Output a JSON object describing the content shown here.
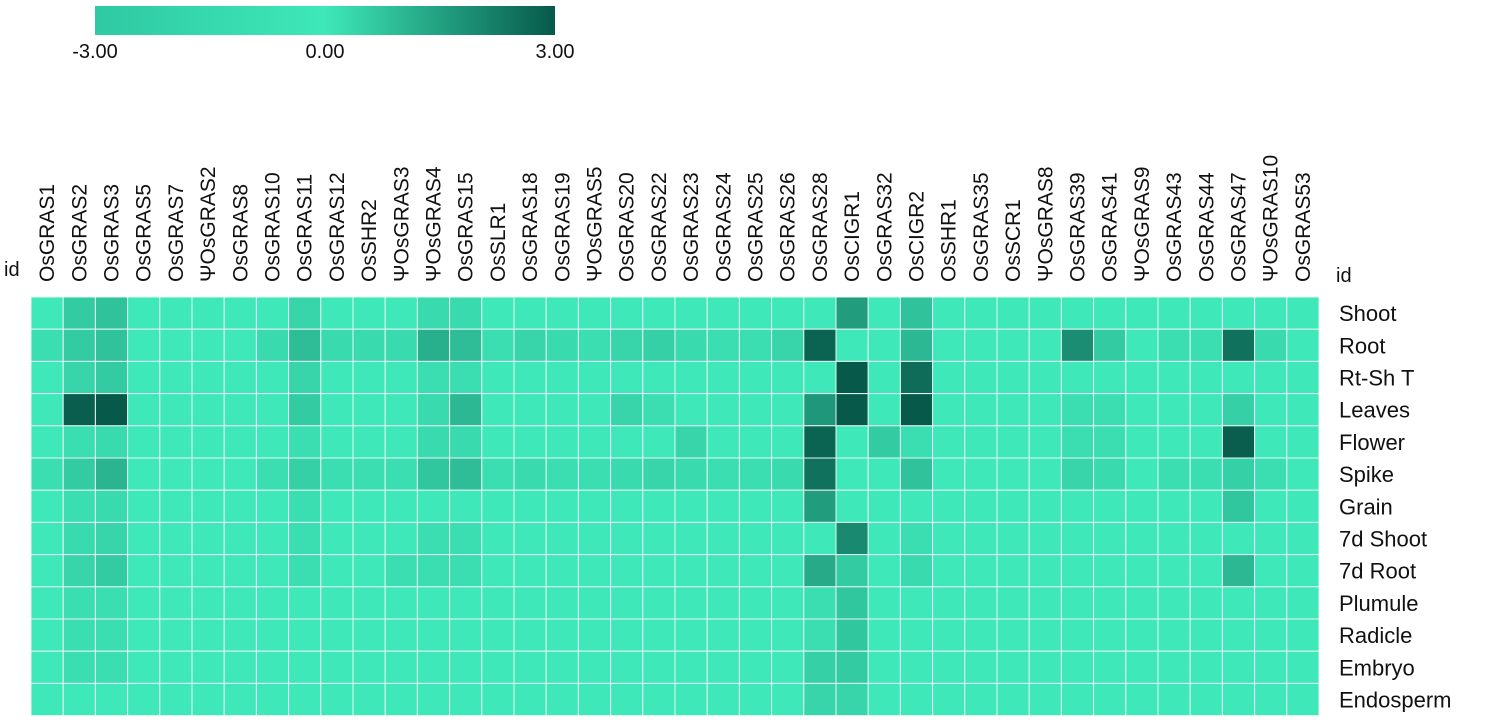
{
  "chart_data": {
    "type": "heatmap",
    "corner_label_left": "id",
    "corner_label_right": "id",
    "color_scale": {
      "min": -3.0,
      "mid": 0.0,
      "max": 3.0,
      "labels": [
        "-3.00",
        "0.00",
        "3.00"
      ],
      "colors": {
        "min": "#2fc9a3",
        "mid": "#3ee8b8",
        "max": "#07594a"
      }
    },
    "columns": [
      "OsGRAS1",
      "OsGRAS2",
      "OsGRAS3",
      "OsGRAS5",
      "OsGRAS7",
      "ΨOsGRAS2",
      "OsGRAS8",
      "OsGRAS10",
      "OsGRAS11",
      "OsGRAS12",
      "OsSHR2",
      "ΨOsGRAS3",
      "ΨOsGRAS4",
      "OsGRAS15",
      "OsSLR1",
      "OsGRAS18",
      "OsGRAS19",
      "ΨOsGRAS5",
      "OsGRAS20",
      "OsGRAS22",
      "OsGRAS23",
      "OsGRAS24",
      "OsGRAS25",
      "OsGRAS26",
      "OsGRAS28",
      "OsCIGR1",
      "OsGRAS32",
      "OsCIGR2",
      "OsSHR1",
      "OsGRAS35",
      "OsSCR1",
      "ΨOsGRAS8",
      "OsGRAS39",
      "OsGRAS41",
      "ΨOsGRAS9",
      "OsGRAS43",
      "OsGRAS44",
      "OsGRAS47",
      "ΨOsGRAS10",
      "OsGRAS53"
    ],
    "rows": [
      "Shoot",
      "Root",
      "Rt-Sh T",
      "Leaves",
      "Flower",
      "Spike",
      "Grain",
      "7d Shoot",
      "7d Root",
      "Plumule",
      "Radicle",
      "Embryo",
      "Endosperm"
    ],
    "values": [
      [
        0,
        0.6,
        0.8,
        0,
        0,
        0,
        0,
        0,
        0.4,
        0,
        0,
        0,
        0.3,
        0.3,
        0,
        0,
        0,
        0,
        0,
        0,
        0,
        0,
        0,
        0,
        0,
        1.6,
        0,
        0.8,
        0,
        0,
        0,
        0,
        0,
        0,
        0,
        0,
        0,
        0,
        0,
        0
      ],
      [
        0.2,
        0.6,
        0.8,
        0,
        0,
        0,
        0,
        0.3,
        0.9,
        0.3,
        0.3,
        0.3,
        1.2,
        0.9,
        0.2,
        0.4,
        0.3,
        0.2,
        0.4,
        0.5,
        0.3,
        0.2,
        0.2,
        0.4,
        2.8,
        0,
        0,
        1.0,
        0,
        0,
        0,
        0,
        1.9,
        0.6,
        0,
        0.2,
        0.2,
        2.5,
        0.3,
        0
      ],
      [
        0,
        0.4,
        0.6,
        0,
        0,
        0,
        0,
        0,
        0.4,
        0,
        0,
        0,
        0.2,
        0.2,
        0,
        0,
        0,
        0,
        0,
        0,
        0,
        0,
        0,
        0,
        0,
        3.0,
        0,
        2.6,
        0,
        0,
        0,
        0,
        0,
        0,
        0,
        0,
        0,
        0,
        0,
        0
      ],
      [
        0,
        2.9,
        3.0,
        0,
        0,
        0,
        0,
        0,
        0.6,
        0,
        0,
        0,
        0.3,
        1.0,
        0,
        0,
        0,
        0,
        0.4,
        0.2,
        0,
        0,
        0,
        0,
        1.7,
        3.0,
        0,
        3.0,
        0,
        0,
        0,
        0,
        0.2,
        0.2,
        0,
        0,
        0,
        0.5,
        0,
        0
      ],
      [
        0,
        0.2,
        0.3,
        0,
        0,
        0,
        0,
        0,
        0.2,
        0,
        0,
        0,
        0.3,
        0.3,
        0,
        0,
        0,
        0,
        0,
        0,
        0.4,
        0,
        0,
        0,
        2.8,
        0,
        0.6,
        0.2,
        0,
        0,
        0,
        0,
        0.2,
        0.2,
        0,
        0,
        0,
        2.9,
        0,
        0
      ],
      [
        0.2,
        0.6,
        1.1,
        0,
        0,
        0,
        0,
        0.2,
        0.5,
        0.2,
        0.2,
        0.2,
        0.7,
        0.9,
        0.2,
        0.3,
        0.2,
        0.2,
        0.3,
        0.4,
        0.3,
        0.2,
        0.2,
        0.3,
        2.5,
        0,
        0,
        0.8,
        0,
        0,
        0,
        0,
        0.4,
        0.3,
        0,
        0.2,
        0.2,
        0.5,
        0.2,
        0
      ],
      [
        0,
        0.2,
        0.3,
        0,
        0,
        0,
        0,
        0,
        0.2,
        0,
        0,
        0,
        0,
        0,
        0,
        0,
        0,
        0,
        0,
        0,
        0,
        0,
        0,
        0,
        1.6,
        0,
        0,
        0,
        0,
        0,
        0,
        0,
        0,
        0,
        0,
        0,
        0,
        0.7,
        0,
        0
      ],
      [
        0,
        0.3,
        0.4,
        0,
        0,
        0,
        0,
        0,
        0.2,
        0,
        0,
        0,
        0.2,
        0.2,
        0,
        0,
        0,
        0,
        0,
        0,
        0,
        0,
        0,
        0,
        0,
        2.0,
        0,
        0.2,
        0,
        0,
        0,
        0,
        0,
        0,
        0,
        0,
        0,
        0,
        0,
        0
      ],
      [
        0,
        0.4,
        0.6,
        0,
        0,
        0,
        0,
        0,
        0.2,
        0,
        0,
        0.2,
        0.2,
        0.2,
        0,
        0,
        0,
        0,
        0,
        0,
        0,
        0,
        0,
        0,
        1.3,
        0.6,
        0,
        0.3,
        0,
        0,
        0,
        0,
        0,
        0,
        0,
        0,
        0,
        1.0,
        0,
        0
      ],
      [
        0,
        0.2,
        0.2,
        0,
        0,
        0,
        0,
        0,
        0,
        0,
        0,
        0,
        0,
        0,
        0,
        0,
        0,
        0,
        0,
        0,
        0,
        0,
        0,
        0,
        0.2,
        0.7,
        0,
        0,
        0,
        0,
        0,
        0,
        0,
        0,
        0,
        0,
        0,
        0,
        0,
        0
      ],
      [
        0,
        0.2,
        0.2,
        0,
        0,
        0,
        0,
        0,
        0,
        0,
        0,
        0,
        0,
        0,
        0,
        0,
        0,
        0,
        0,
        0,
        0,
        0,
        0,
        0,
        0.2,
        0.7,
        0,
        0,
        0,
        0,
        0,
        0,
        0,
        0,
        0,
        0,
        0,
        0,
        0,
        0
      ],
      [
        0,
        0.2,
        0.2,
        0,
        0,
        0,
        0,
        0,
        0,
        0,
        0,
        0,
        0,
        0,
        0,
        0,
        0,
        0,
        0,
        0,
        0,
        0,
        0,
        0,
        0.5,
        0.6,
        0,
        0,
        0,
        0,
        0,
        0,
        0,
        0,
        0,
        0,
        0,
        0,
        0,
        0
      ],
      [
        0,
        0,
        0,
        0,
        0,
        0,
        0,
        0,
        0,
        0,
        0,
        0,
        0,
        0,
        0,
        0,
        0,
        0,
        0,
        0,
        0,
        0,
        0,
        0,
        0.4,
        0.4,
        0,
        0,
        0,
        0,
        0,
        0,
        0,
        0,
        0,
        0,
        0,
        0,
        0,
        0
      ]
    ]
  }
}
